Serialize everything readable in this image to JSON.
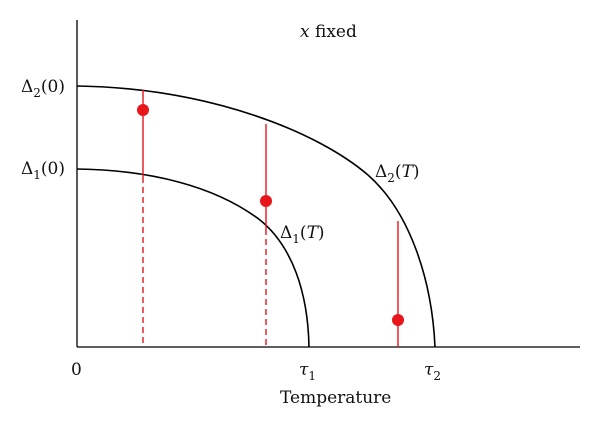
{
  "title": {
    "var": "x",
    "rest": " fixed"
  },
  "xlabel": "Temperature",
  "origin_label": "0",
  "y_labels": {
    "delta2_0": {
      "sym": "Δ",
      "sub": "2",
      "arg": "(0)"
    },
    "delta1_0": {
      "sym": "Δ",
      "sub": "1",
      "arg": "(0)"
    }
  },
  "x_labels": {
    "tau1": {
      "sym": "τ",
      "sub": "1"
    },
    "tau2": {
      "sym": "τ",
      "sub": "2"
    }
  },
  "curve_labels": {
    "delta1_T": {
      "sym": "Δ",
      "sub": "1",
      "open": "(",
      "var": "T",
      "close": ")"
    },
    "delta2_T": {
      "sym": "Δ",
      "sub": "2",
      "open": "(",
      "var": "T",
      "close": ")"
    }
  },
  "colors": {
    "axes": "#000000",
    "curves": "#000000",
    "markers": "#e8161b"
  }
}
